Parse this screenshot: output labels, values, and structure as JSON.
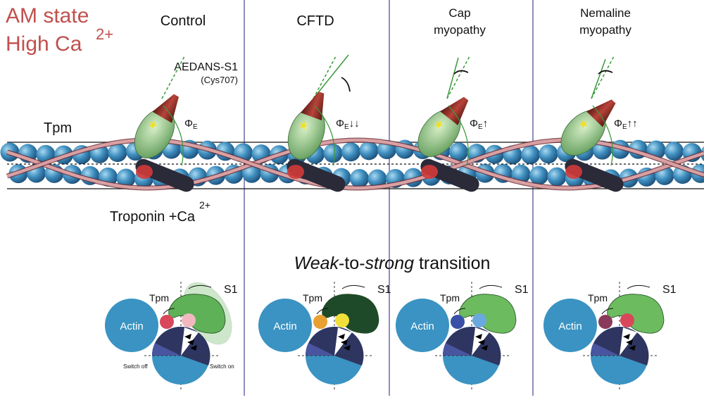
{
  "heading": {
    "line1": "AM state",
    "line2": "High Ca",
    "superscript": "2+",
    "color": "#c0504d"
  },
  "panels": [
    {
      "title_line1": "Control",
      "title_line2": "",
      "phi_label": "Φ",
      "phi_sub": "E",
      "phi_arrows": ""
    },
    {
      "title_line1": "CFTD",
      "title_line2": "",
      "phi_label": "Φ",
      "phi_sub": "E",
      "phi_arrows": "↓↓"
    },
    {
      "title_line1": "Cap",
      "title_line2": "myopathy",
      "phi_label": "Φ",
      "phi_sub": "E",
      "phi_arrows": "↑"
    },
    {
      "title_line1": "Nemaline",
      "title_line2": "myopathy",
      "phi_label": "Φ",
      "phi_sub": "E",
      "phi_arrows": "↑↑"
    }
  ],
  "labels": {
    "probe": "AEDANS-S1",
    "probe_site": "(Cys707)",
    "tpm": "Tpm",
    "troponin": "Troponin +Ca",
    "troponin_sup": "2+",
    "transition_italic1": "Weak",
    "transition_mid": "-to-",
    "transition_italic2": "strong",
    "transition_end": " transition"
  },
  "schematics": [
    {
      "actin": "Actin",
      "tpm": "Tpm",
      "s1": "S1",
      "switch_off": "Switch off",
      "switch_on": "Switch on",
      "tpm_color": "#d9475a",
      "site_color": "#f2b8c0",
      "s1_color": "#5fb157",
      "s1_ghost": true
    },
    {
      "actin": "Actin",
      "tpm": "Tpm",
      "s1": "S1",
      "tpm_color": "#e8a030",
      "site_color": "#f2e03a",
      "s1_color": "#1f4a2a",
      "s1_ghost": false
    },
    {
      "actin": "Actin",
      "tpm": "Tpm",
      "s1": "S1",
      "tpm_color": "#3a4fa8",
      "site_color": "#6aa8e0",
      "s1_color": "#6dbb5f",
      "s1_ghost": false
    },
    {
      "actin": "Actin",
      "tpm": "Tpm",
      "s1": "S1",
      "tpm_color": "#8a3a5a",
      "site_color": "#d9475a",
      "s1_color": "#6dbb5f",
      "s1_ghost": false
    }
  ],
  "colors": {
    "actin": "#3a93c2",
    "divider": "#6a6aa8",
    "wheel_dark": "#2e3560",
    "wheel_mid": "#4a55a0"
  }
}
